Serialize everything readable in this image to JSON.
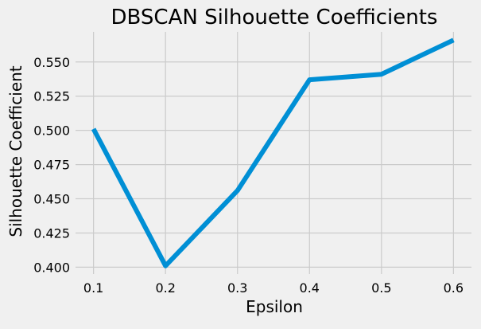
{
  "chart_data": {
    "type": "line",
    "title": "DBSCAN Silhouette Coefficients",
    "xlabel": "Epsilon",
    "ylabel": "Silhouette Coefficient",
    "x": [
      0.1,
      0.2,
      0.3,
      0.4,
      0.5,
      0.6
    ],
    "series": [
      {
        "values": [
          0.501,
          0.401,
          0.456,
          0.537,
          0.541,
          0.566
        ]
      }
    ],
    "xlim": [
      0.075,
      0.625
    ],
    "ylim": [
      0.395,
      0.572
    ],
    "xticks": [
      0.1,
      0.2,
      0.3,
      0.4,
      0.5,
      0.6
    ],
    "xtick_labels": [
      "0.1",
      "0.2",
      "0.3",
      "0.4",
      "0.5",
      "0.6"
    ],
    "yticks": [
      0.4,
      0.425,
      0.45,
      0.475,
      0.5,
      0.525,
      0.55
    ],
    "ytick_labels": [
      "0.400",
      "0.425",
      "0.450",
      "0.475",
      "0.500",
      "0.525",
      "0.550"
    ],
    "grid": true,
    "colors": {
      "line": "#008fd5",
      "background": "#f0f0f0",
      "grid": "#cbcbcb"
    }
  }
}
